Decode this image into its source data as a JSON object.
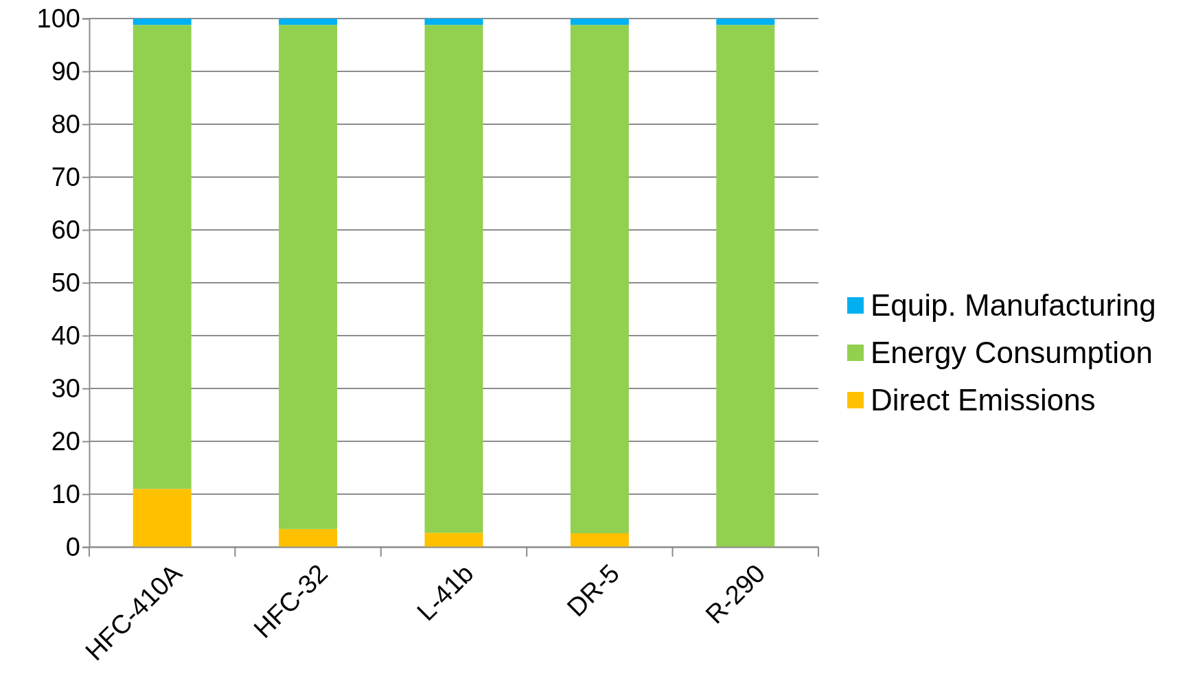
{
  "chart_data": {
    "type": "bar",
    "stacked": true,
    "categories": [
      "HFC-410A",
      "HFC-32",
      "L-41b",
      "DR-5",
      "R-290"
    ],
    "series": [
      {
        "name": "Direct Emissions",
        "color": "#ffc000",
        "values": [
          11,
          3.4,
          2.7,
          2.6,
          0
        ]
      },
      {
        "name": "Energy Consumption",
        "color": "#92d050",
        "values": [
          87.8,
          95.4,
          96.1,
          96.2,
          98.8
        ]
      },
      {
        "name": "Equip. Manufacturing",
        "color": "#00b0f0",
        "values": [
          1.2,
          1.2,
          1.2,
          1.2,
          1.2
        ]
      }
    ],
    "ylim": [
      0,
      100
    ],
    "yticks": [
      0,
      10,
      20,
      30,
      40,
      50,
      60,
      70,
      80,
      90,
      100
    ],
    "grid": "y",
    "legend": "right"
  }
}
